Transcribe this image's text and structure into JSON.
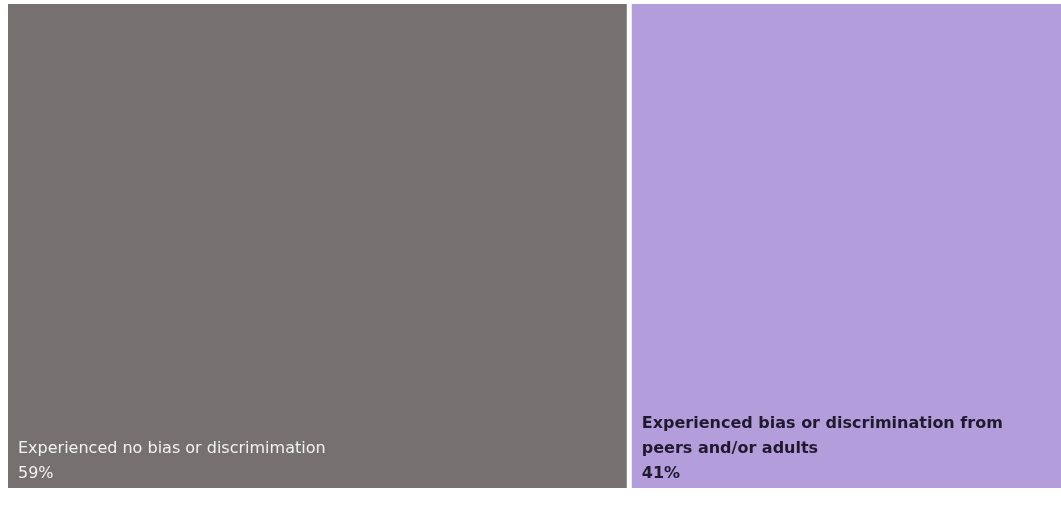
{
  "chart_data": {
    "type": "other",
    "categories": [
      "Experienced no bias or discrimimation",
      "Experienced bias or discrimination from peers and/or adults"
    ],
    "values": [
      59,
      41
    ],
    "colors": [
      "#767170",
      "#b39ddb"
    ],
    "value_labels": [
      "59%",
      "41%"
    ]
  }
}
